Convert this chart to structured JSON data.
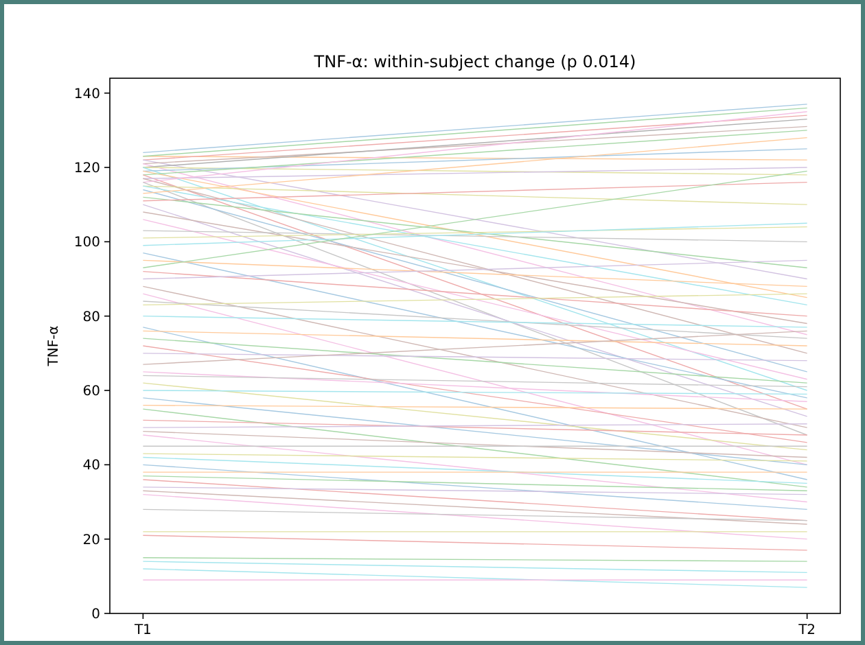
{
  "chart_data": {
    "type": "line",
    "title": "TNF-α: within-subject change (p 0.014)",
    "ylabel": "TNF-α",
    "categories": [
      "T1",
      "T2"
    ],
    "ylim": [
      0,
      144
    ],
    "yticks": [
      0,
      20,
      40,
      60,
      80,
      100,
      120,
      140
    ],
    "grid": false,
    "marker": "none",
    "line_style": "solid",
    "series": [
      {
        "color": "#a5c8e1",
        "values": [
          124,
          137
        ]
      },
      {
        "color": "#ffc999",
        "values": [
          123,
          122
        ]
      },
      {
        "color": "#a6d7a6",
        "values": [
          123,
          136
        ]
      },
      {
        "color": "#eea9a9",
        "values": [
          122,
          134
        ]
      },
      {
        "color": "#d2c2e1",
        "values": [
          122,
          90
        ]
      },
      {
        "color": "#cfb7b3",
        "values": [
          121,
          131
        ]
      },
      {
        "color": "#f4c0e4",
        "values": [
          121,
          75
        ]
      },
      {
        "color": "#b0b0b0",
        "values": [
          120,
          133
        ]
      },
      {
        "color": "#e0e0a0",
        "values": [
          120,
          118
        ]
      },
      {
        "color": "#a3e5ed",
        "values": [
          120,
          60
        ]
      },
      {
        "color": "#a5c8e1",
        "values": [
          119,
          125
        ]
      },
      {
        "color": "#ffc999",
        "values": [
          119,
          85
        ]
      },
      {
        "color": "#a6d7a6",
        "values": [
          118,
          130
        ]
      },
      {
        "color": "#eea9a9",
        "values": [
          118,
          55
        ]
      },
      {
        "color": "#d2c2e1",
        "values": [
          117,
          120
        ]
      },
      {
        "color": "#cfb7b3",
        "values": [
          117,
          70
        ]
      },
      {
        "color": "#f4c0e4",
        "values": [
          116,
          135
        ]
      },
      {
        "color": "#c6c6c6",
        "values": [
          116,
          48
        ]
      },
      {
        "color": "#e0e0a0",
        "values": [
          115,
          110
        ]
      },
      {
        "color": "#a3e5ed",
        "values": [
          115,
          83
        ]
      },
      {
        "color": "#a5c8e1",
        "values": [
          114,
          65
        ]
      },
      {
        "color": "#ffc999",
        "values": [
          113,
          128
        ]
      },
      {
        "color": "#a6d7a6",
        "values": [
          112,
          93
        ]
      },
      {
        "color": "#eea9a9",
        "values": [
          111,
          116
        ]
      },
      {
        "color": "#d2c2e1",
        "values": [
          110,
          53
        ]
      },
      {
        "color": "#cfb7b3",
        "values": [
          108,
          78
        ]
      },
      {
        "color": "#f4c0e4",
        "values": [
          106,
          63
        ]
      },
      {
        "color": "#c6c6c6",
        "values": [
          103,
          100
        ]
      },
      {
        "color": "#e0e0a0",
        "values": [
          101,
          104
        ]
      },
      {
        "color": "#a3e5ed",
        "values": [
          99,
          105
        ]
      },
      {
        "color": "#a5c8e1",
        "values": [
          97,
          58
        ]
      },
      {
        "color": "#ffc999",
        "values": [
          95,
          88
        ]
      },
      {
        "color": "#a6d7a6",
        "values": [
          93,
          119
        ]
      },
      {
        "color": "#eea9a9",
        "values": [
          92,
          80
        ]
      },
      {
        "color": "#d2c2e1",
        "values": [
          90,
          95
        ]
      },
      {
        "color": "#cfb7b3",
        "values": [
          88,
          50
        ]
      },
      {
        "color": "#f4c0e4",
        "values": [
          86,
          40
        ]
      },
      {
        "color": "#c6c6c6",
        "values": [
          84,
          74
        ]
      },
      {
        "color": "#e0e0a0",
        "values": [
          83,
          86
        ]
      },
      {
        "color": "#a3e5ed",
        "values": [
          80,
          77
        ]
      },
      {
        "color": "#a5c8e1",
        "values": [
          77,
          36
        ]
      },
      {
        "color": "#ffc999",
        "values": [
          76,
          72
        ]
      },
      {
        "color": "#a6d7a6",
        "values": [
          74,
          62
        ]
      },
      {
        "color": "#eea9a9",
        "values": [
          72,
          46
        ]
      },
      {
        "color": "#d2c2e1",
        "values": [
          70,
          68
        ]
      },
      {
        "color": "#cfb7b3",
        "values": [
          67,
          76
        ]
      },
      {
        "color": "#f4c0e4",
        "values": [
          65,
          57
        ]
      },
      {
        "color": "#c6c6c6",
        "values": [
          64,
          61
        ]
      },
      {
        "color": "#e0e0a0",
        "values": [
          62,
          44
        ]
      },
      {
        "color": "#a3e5ed",
        "values": [
          60,
          59
        ]
      },
      {
        "color": "#a5c8e1",
        "values": [
          58,
          40
        ]
      },
      {
        "color": "#ffc999",
        "values": [
          56,
          55
        ]
      },
      {
        "color": "#a6d7a6",
        "values": [
          55,
          34
        ]
      },
      {
        "color": "#eea9a9",
        "values": [
          52,
          48
        ]
      },
      {
        "color": "#d2c2e1",
        "values": [
          50,
          51
        ]
      },
      {
        "color": "#cfb7b3",
        "values": [
          49,
          42
        ]
      },
      {
        "color": "#f4c0e4",
        "values": [
          48,
          30
        ]
      },
      {
        "color": "#c6c6c6",
        "values": [
          45,
          45
        ]
      },
      {
        "color": "#e0e0a0",
        "values": [
          43,
          41
        ]
      },
      {
        "color": "#a3e5ed",
        "values": [
          42,
          35
        ]
      },
      {
        "color": "#a5c8e1",
        "values": [
          40,
          28
        ]
      },
      {
        "color": "#ffc999",
        "values": [
          38,
          38
        ]
      },
      {
        "color": "#a6d7a6",
        "values": [
          37,
          33
        ]
      },
      {
        "color": "#eea9a9",
        "values": [
          36,
          25
        ]
      },
      {
        "color": "#d2c2e1",
        "values": [
          34,
          32
        ]
      },
      {
        "color": "#cfb7b3",
        "values": [
          33,
          24
        ]
      },
      {
        "color": "#f4c0e4",
        "values": [
          32,
          20
        ]
      },
      {
        "color": "#c6c6c6",
        "values": [
          28,
          25
        ]
      },
      {
        "color": "#e0e0a0",
        "values": [
          22,
          22
        ]
      },
      {
        "color": "#eea9a9",
        "values": [
          21,
          17
        ]
      },
      {
        "color": "#a6d7a6",
        "values": [
          15,
          14
        ]
      },
      {
        "color": "#a3e5ed",
        "values": [
          14,
          11
        ]
      },
      {
        "color": "#a3e5ed",
        "values": [
          12,
          7
        ]
      },
      {
        "color": "#f4c0e4",
        "values": [
          9,
          9
        ]
      }
    ]
  }
}
